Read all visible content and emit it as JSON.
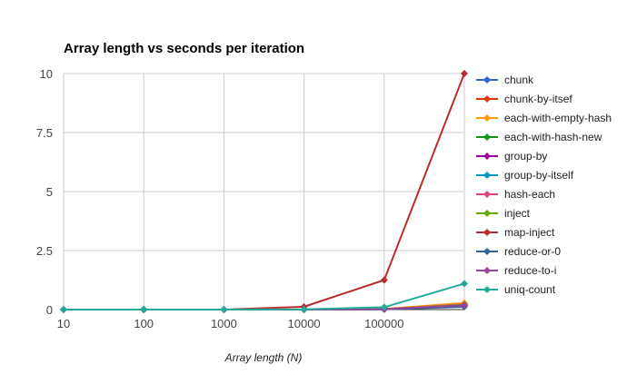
{
  "chart_data": {
    "type": "line",
    "title": "Array length vs seconds per iteration",
    "xlabel": "Array length (N)",
    "ylabel": "",
    "x_tick_labels": [
      "10",
      "100",
      "1000",
      "10000",
      "100000",
      ""
    ],
    "y_tick_labels": [
      "0",
      "2.5",
      "5",
      "7.5",
      "10"
    ],
    "y_ticks": [
      0,
      2.5,
      5,
      7.5,
      10
    ],
    "ylim": [
      0,
      10
    ],
    "grid": true,
    "legend_position": "right",
    "series": [
      {
        "name": "chunk",
        "color": "#3366cc",
        "values": [
          0,
          0,
          0,
          0,
          0.02,
          0.2
        ]
      },
      {
        "name": "chunk-by-itsef",
        "color": "#dc3912",
        "values": [
          0,
          0,
          0,
          0,
          0.02,
          0.22
        ]
      },
      {
        "name": "each-with-empty-hash",
        "color": "#ff9900",
        "values": [
          0,
          0,
          0,
          0,
          0.03,
          0.28
        ]
      },
      {
        "name": "each-with-hash-new",
        "color": "#109618",
        "values": [
          0,
          0,
          0,
          0,
          0.02,
          0.2
        ]
      },
      {
        "name": "group-by",
        "color": "#990099",
        "values": [
          0,
          0,
          0,
          0,
          0.02,
          0.18
        ]
      },
      {
        "name": "group-by-itself",
        "color": "#0099c6",
        "values": [
          0,
          0,
          0,
          0,
          0.02,
          0.18
        ]
      },
      {
        "name": "hash-each",
        "color": "#dd4477",
        "values": [
          0,
          0,
          0,
          0,
          0.02,
          0.22
        ]
      },
      {
        "name": "inject",
        "color": "#66aa00",
        "values": [
          0,
          0,
          0,
          0,
          0.02,
          0.2
        ]
      },
      {
        "name": "map-inject",
        "color": "#b82e2e",
        "values": [
          0,
          0,
          0,
          0.12,
          1.25,
          10
        ]
      },
      {
        "name": "reduce-or-0",
        "color": "#316395",
        "values": [
          0,
          0,
          0,
          0,
          0.01,
          0.12
        ]
      },
      {
        "name": "reduce-to-i",
        "color": "#994499",
        "values": [
          0,
          0,
          0,
          0,
          0.02,
          0.18
        ]
      },
      {
        "name": "uniq-count",
        "color": "#22aa99",
        "values": [
          0,
          0,
          0,
          0.01,
          0.1,
          1.1
        ]
      }
    ]
  }
}
